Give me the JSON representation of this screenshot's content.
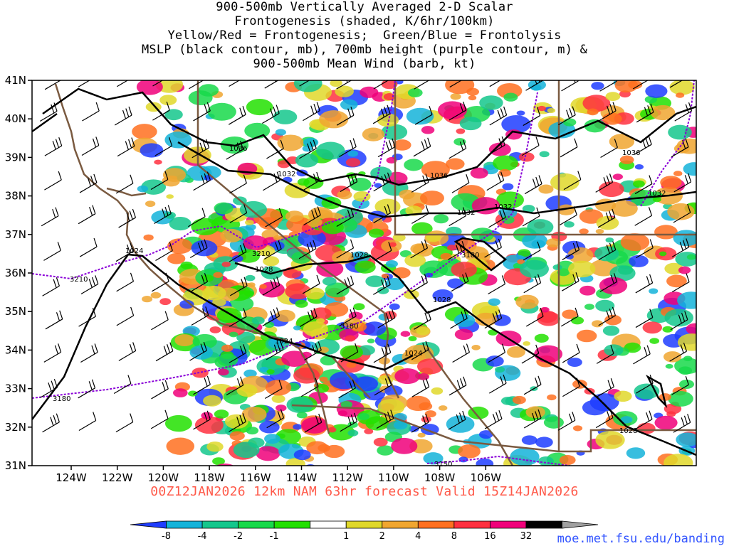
{
  "title_lines": [
    "900-500mb Vertically Averaged 2-D Scalar",
    "Frontogenesis (shaded, K/6hr/100km)",
    "Yellow/Red = Frontogenesis;  Green/Blue = Frontolysis",
    "MSLP (black contour, mb), 700mb height (purple contour, m) &",
    "900-500mb Mean Wind (barb, kt)"
  ],
  "lat_labels": [
    "41N",
    "40N",
    "39N",
    "38N",
    "37N",
    "36N",
    "35N",
    "34N",
    "33N",
    "32N",
    "31N"
  ],
  "lon_labels": [
    "124W",
    "122W",
    "120W",
    "118W",
    "116W",
    "114W",
    "112W",
    "110W",
    "108W",
    "106W"
  ],
  "mslp_labels": [
    "1036",
    "1032",
    "1036",
    "1032",
    "1032",
    "1036",
    "1032",
    "1028",
    "1028",
    "1024",
    "1028",
    "1024",
    "1024",
    "1028"
  ],
  "height_labels": [
    "3210",
    "3210",
    "3180",
    "3180",
    "3180",
    "3150"
  ],
  "valid_text": "00Z12JAN2026 12km NAM 63hr forecast Valid 15Z14JAN2026",
  "credit_text": "moe.met.fsu.edu/banding",
  "colorbar": {
    "labels": [
      "-8",
      "-4",
      "-2",
      "-1",
      "1",
      "2",
      "4",
      "8",
      "16",
      "32"
    ],
    "colors": [
      "#1f3dff",
      "#14b3d9",
      "#14c78c",
      "#18d94a",
      "#22e000",
      "#ffffff",
      "#e0d82a",
      "#f0a630",
      "#ff7020",
      "#ff3040",
      "#f0007a",
      "#000000",
      "#a0a0a0"
    ]
  },
  "colors": {
    "mslp": "#000000",
    "height": "#8a00d8",
    "border": "#7a5a40",
    "valid_text": "#ff5a4a",
    "credit": "#3355ff"
  }
}
